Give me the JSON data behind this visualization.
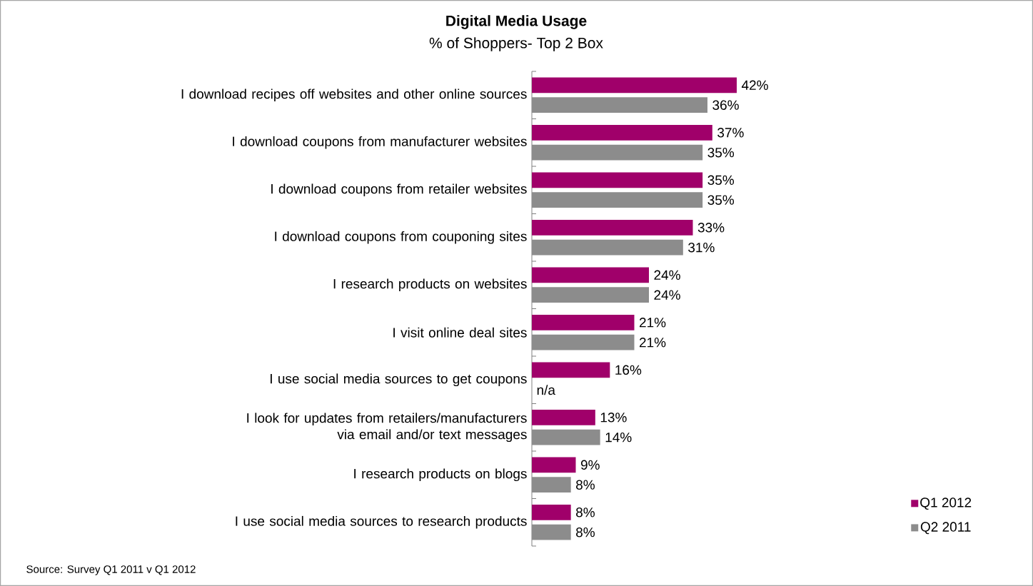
{
  "chart_data": {
    "type": "bar",
    "orientation": "horizontal",
    "title": "Digital Media Usage",
    "subtitle": "% of Shoppers- Top 2 Box",
    "categories": [
      "I download recipes off websites and other online sources",
      "I download coupons from manufacturer websites",
      "I download coupons from retailer websites",
      "I download coupons from couponing sites",
      "I research products on websites",
      "I visit online deal sites",
      "I use social media sources to get coupons",
      "I look for updates from retailers/manufacturers via email and/or text messages",
      "I research products on blogs",
      "I use social media sources to research products"
    ],
    "series": [
      {
        "name": "Q1 2012",
        "color": "#a0006a",
        "values": [
          42,
          37,
          35,
          33,
          24,
          21,
          16,
          13,
          9,
          8
        ],
        "value_labels": [
          "42%",
          "37%",
          "35%",
          "33%",
          "24%",
          "21%",
          "16%",
          "13%",
          "9%",
          "8%"
        ]
      },
      {
        "name": "Q2 2011",
        "color": "#8c8c8c",
        "values": [
          36,
          35,
          35,
          31,
          24,
          21,
          null,
          14,
          8,
          8
        ],
        "value_labels": [
          "36%",
          "35%",
          "35%",
          "31%",
          "24%",
          "21%",
          "n/a",
          "14%",
          "8%",
          "8%"
        ]
      }
    ],
    "legend": "bottom right",
    "annotations": [
      "Source:  Survey Q1 2011 v Q1 2012"
    ]
  }
}
